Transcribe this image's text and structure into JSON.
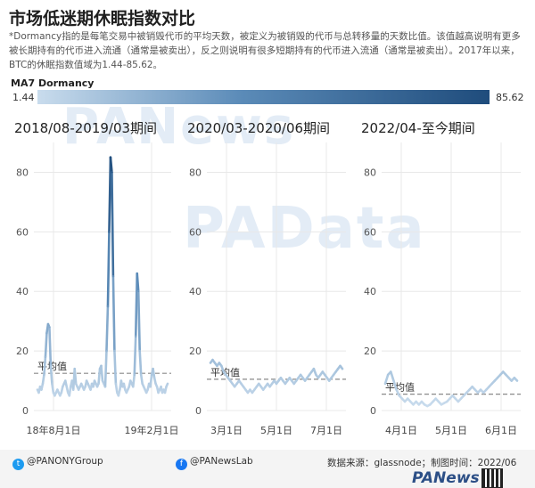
{
  "title": "市场低迷期休眠指数对比",
  "description": "*Dormancy指的是每笔交易中被销毁代币的平均天数，被定义为被销毁的代币与总转移量的天数比值。该值越高说明有更多被长期持有的代币进入流通（通常是被卖出），反之则说明有很多短期持有的代币进入流通（通常是被卖出）。2017年以来，BTC的休眠指数值域为1.44-85.62。",
  "legend": {
    "title": "MA7 Dormancy",
    "min_label": "1.44",
    "max_label": "85.62"
  },
  "watermarks": {
    "top": "PANews",
    "center": "PAData"
  },
  "footer": {
    "twitter": "@PANONYGroup",
    "facebook": "@PANewsLab",
    "source": "数据来源：glassnode；制图时间：2022/06",
    "brand": "PANews",
    "twitter_icon": "twitter-icon",
    "facebook_icon": "facebook-icon"
  },
  "colors": {
    "low": "#c9dced",
    "mid": "#5b8bb8",
    "high": "#1f4c7c",
    "avg_line": "#8a8a8a",
    "grid": "#e8e8e8"
  },
  "chart_data": [
    {
      "type": "line",
      "title": "2018/08-2019/03期间",
      "x_tick_labels": [
        "18年8月1日",
        "19年2月1日"
      ],
      "ylim": [
        0,
        90
      ],
      "y_ticks": [
        0,
        20,
        40,
        60,
        80
      ],
      "average": 12.5,
      "average_label": "平均值",
      "grid": true,
      "values": [
        7,
        6,
        8,
        7,
        9,
        12,
        18,
        26,
        29,
        28,
        15,
        9,
        6,
        5,
        6,
        7,
        6,
        5,
        6,
        8,
        9,
        10,
        8,
        6,
        5,
        8,
        10,
        7,
        14,
        9,
        8,
        7,
        8,
        9,
        8,
        7,
        8,
        10,
        9,
        8,
        7,
        9,
        8,
        10,
        9,
        8,
        9,
        14,
        15,
        10,
        9,
        8,
        20,
        35,
        60,
        85,
        80,
        45,
        20,
        9,
        6,
        5,
        7,
        10,
        8,
        9,
        7,
        6,
        7,
        8,
        10,
        9,
        8,
        12,
        25,
        46,
        40,
        20,
        12,
        9,
        8,
        7,
        6,
        7,
        9,
        8,
        12,
        14,
        11,
        9,
        8,
        6,
        7,
        8,
        6,
        7,
        6,
        8,
        9
      ]
    },
    {
      "type": "line",
      "title": "2020/03-2020/06期间",
      "x_tick_labels": [
        "3月1日",
        "5月1日",
        "7月1日"
      ],
      "ylim": [
        0,
        90
      ],
      "y_ticks": [
        0,
        20,
        40,
        60,
        80
      ],
      "average": 10.5,
      "average_label": "平均值",
      "grid": true,
      "values": [
        16,
        17,
        16,
        15,
        16,
        15,
        13,
        12,
        11,
        10,
        9,
        8,
        9,
        10,
        9,
        8,
        7,
        6,
        7,
        6,
        7,
        8,
        9,
        8,
        7,
        8,
        9,
        8,
        9,
        10,
        9,
        10,
        11,
        10,
        9,
        10,
        11,
        10,
        9,
        10,
        11,
        12,
        11,
        10,
        11,
        12,
        13,
        14,
        12,
        11,
        12,
        13,
        12,
        11,
        10,
        11,
        12,
        13,
        14,
        15,
        14
      ]
    },
    {
      "type": "line",
      "title": "2022/04-至今期间",
      "x_tick_labels": [
        "4月1日",
        "5月1日",
        "6月1日"
      ],
      "ylim": [
        0,
        90
      ],
      "y_ticks": [
        0,
        20,
        40,
        60,
        80
      ],
      "average": 5.5,
      "average_label": "平均值",
      "grid": true,
      "values": [
        9,
        12,
        13,
        10,
        7,
        5,
        4,
        3,
        4,
        3,
        2,
        3,
        2,
        3,
        2,
        1.5,
        2,
        3,
        4,
        3,
        2,
        2.5,
        3,
        4,
        5,
        4,
        3,
        4,
        5,
        6,
        7,
        8,
        7,
        6,
        7,
        6,
        7,
        8,
        9,
        10,
        11,
        12,
        13,
        12,
        11,
        10,
        11,
        10
      ]
    }
  ]
}
